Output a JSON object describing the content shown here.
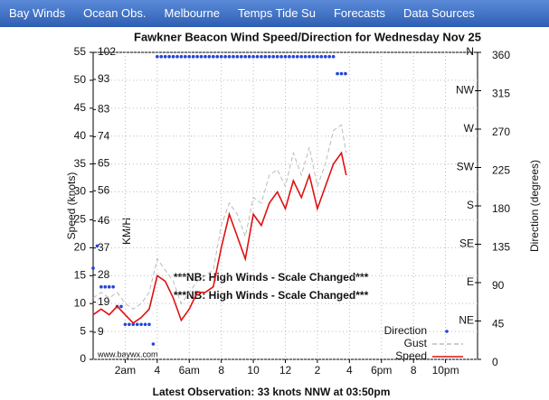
{
  "nav": [
    "Bay Winds",
    "Ocean Obs.",
    "Melbourne",
    "Temps Tide Su",
    "Forecasts",
    "Data Sources"
  ],
  "chart_data": {
    "type": "line",
    "title": "Fawkner Beacon Wind Speed/Direction for Wednesday Nov 25",
    "ylabel": "Speed (knots)",
    "y2label": "Direction (degrees)",
    "kmhlabel": "KM/H",
    "caption": "Latest Observation: 33 knots NNW at 03:50pm",
    "watermark": "www.baywx.com",
    "annotations": [
      "***NB: High Winds - Scale Changed***",
      "***NB: High Winds - Scale Changed***"
    ],
    "grid": true,
    "legend": "lower right",
    "xlim": [
      0,
      24
    ],
    "xticks": [
      {
        "value": 2,
        "label": "2am"
      },
      4,
      {
        "value": 6,
        "label": "6am"
      },
      8,
      10,
      12,
      {
        "value": 14,
        "label": "2"
      },
      {
        "value": 16,
        "label": "4"
      },
      {
        "value": 18,
        "label": "6pm"
      },
      {
        "value": 20,
        "label": "8"
      },
      {
        "value": 22,
        "label": "10pm"
      }
    ],
    "ylim": [
      0,
      55
    ],
    "yticks": [
      0,
      5,
      10,
      15,
      20,
      25,
      30,
      35,
      40,
      45,
      50,
      55
    ],
    "y2lim": [
      0,
      360
    ],
    "y2ticks": [
      0,
      45,
      90,
      135,
      180,
      225,
      270,
      315,
      360
    ],
    "compass": [
      {
        "value": 45,
        "label": "NE"
      },
      {
        "value": 90,
        "label": "E"
      },
      {
        "value": 135,
        "label": "SE"
      },
      {
        "value": 180,
        "label": "S"
      },
      {
        "value": 225,
        "label": "SW"
      },
      {
        "value": 270,
        "label": "W"
      },
      {
        "value": 315,
        "label": "NW"
      },
      {
        "value": 360,
        "label": "N"
      }
    ],
    "kmhlim": [
      0,
      102
    ],
    "kmhticks": [
      9,
      19,
      28,
      37,
      46,
      56,
      65,
      74,
      83,
      93,
      102
    ],
    "x": [
      0,
      0.5,
      1,
      1.5,
      2,
      2.5,
      3,
      3.5,
      4,
      4.5,
      5,
      5.5,
      6,
      6.5,
      7,
      7.5,
      8,
      8.5,
      9,
      9.5,
      10,
      10.5,
      11,
      11.5,
      12,
      12.5,
      13,
      13.5,
      14,
      14.5,
      15,
      15.5,
      15.8
    ],
    "series": [
      {
        "name": "Direction",
        "color": "#2244dd",
        "axis": "y2",
        "style": "dots",
        "x": [
          0,
          0.25,
          0.5,
          0.75,
          1,
          1.25,
          1.5,
          1.75,
          2,
          2.25,
          2.5,
          2.75,
          3,
          3.25,
          3.5,
          3.75,
          4,
          4.25,
          4.5,
          4.75,
          5,
          5.25,
          5.5,
          5.75,
          6,
          6.25,
          6.5,
          6.75,
          7,
          7.25,
          7.5,
          7.75,
          8,
          8.25,
          8.5,
          8.75,
          9,
          9.25,
          9.5,
          9.75,
          10,
          10.25,
          10.5,
          10.75,
          11,
          11.25,
          11.5,
          11.75,
          12,
          12.25,
          12.5,
          12.75,
          13,
          13.25,
          13.5,
          13.75,
          14,
          14.25,
          14.5,
          14.75,
          15,
          15.25,
          15.5,
          15.75
        ],
        "values": [
          107,
          133,
          85,
          85,
          85,
          85,
          62,
          62,
          41,
          41,
          41,
          41,
          41,
          41,
          41,
          18,
          355,
          355,
          355,
          355,
          355,
          355,
          355,
          355,
          355,
          355,
          355,
          355,
          355,
          355,
          355,
          355,
          355,
          355,
          355,
          355,
          355,
          355,
          355,
          355,
          355,
          355,
          355,
          355,
          355,
          355,
          355,
          355,
          355,
          355,
          355,
          355,
          355,
          355,
          355,
          355,
          355,
          355,
          355,
          355,
          355,
          335,
          335,
          335
        ]
      },
      {
        "name": "Gust",
        "color": "#bbbbbb",
        "style": "dash",
        "values": [
          11,
          12,
          11,
          12,
          10,
          9,
          10,
          12,
          18,
          16,
          14,
          10,
          12,
          14,
          15,
          16,
          24,
          28,
          26,
          22,
          29,
          28,
          33,
          34,
          31,
          37,
          33,
          38,
          31,
          35,
          41,
          42,
          37
        ]
      },
      {
        "name": "Speed",
        "color": "#e01010",
        "style": "solid",
        "values": [
          8,
          9,
          8,
          9.5,
          8,
          6.5,
          7.5,
          9,
          15,
          14,
          11,
          7,
          9,
          12,
          12,
          13,
          20,
          26,
          22,
          18,
          26,
          24,
          28,
          30,
          27,
          32,
          29,
          33,
          27,
          31,
          35,
          37,
          33
        ]
      }
    ]
  }
}
